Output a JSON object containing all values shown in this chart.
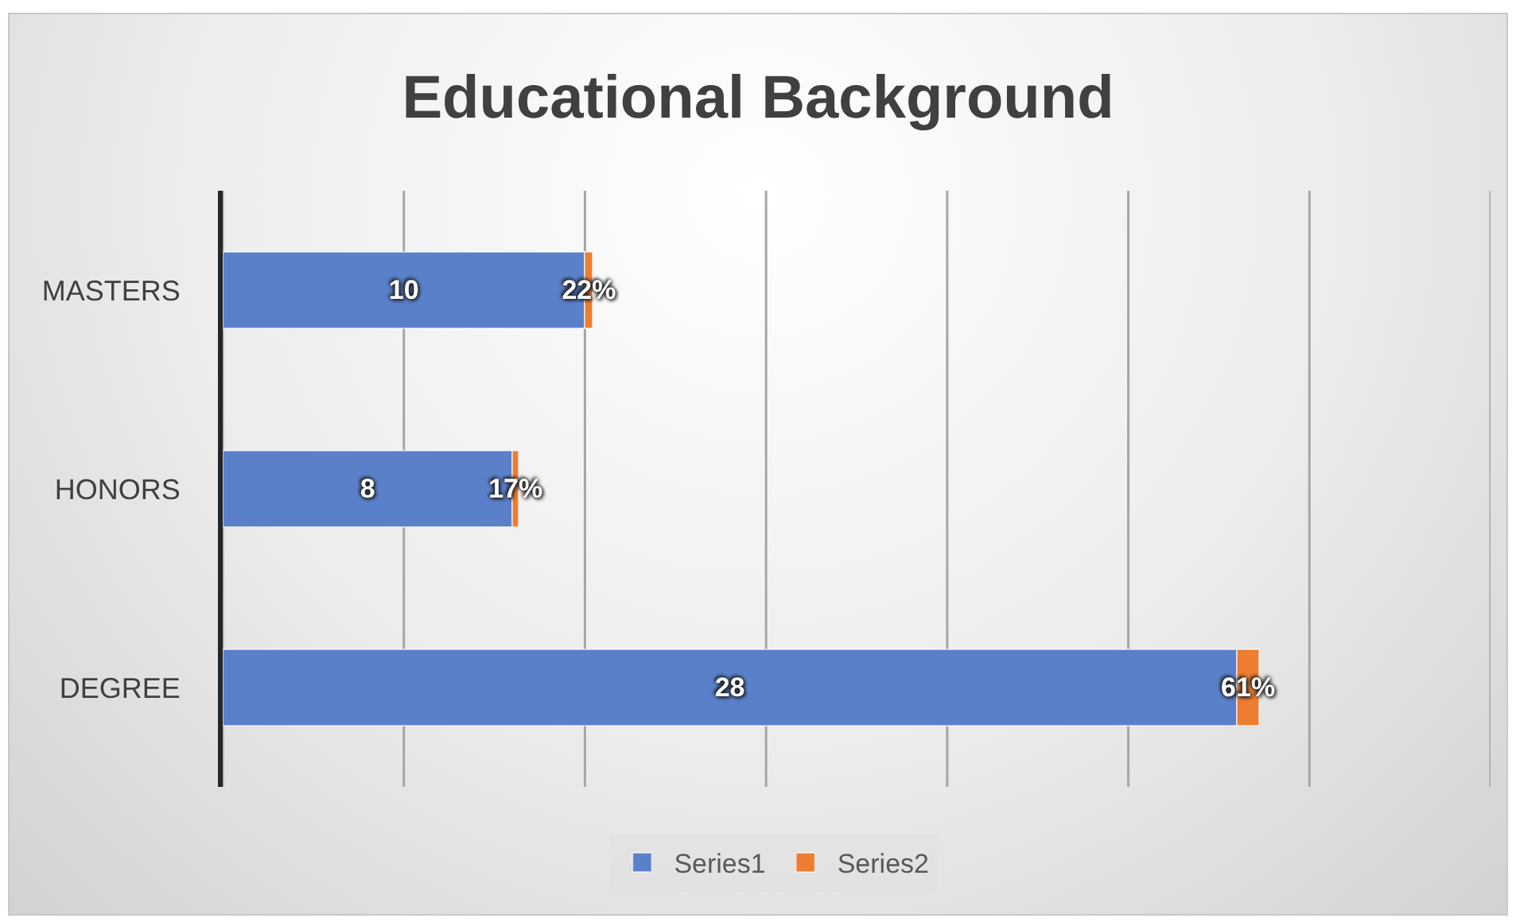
{
  "chart_data": {
    "type": "bar",
    "title": "Educational Background",
    "orientation": "horizontal",
    "stacked": true,
    "categories": [
      "MASTERS",
      "HONORS",
      "DEGREE"
    ],
    "series": [
      {
        "name": "Series1",
        "color": "#5a80ca",
        "values": [
          10,
          8,
          28
        ],
        "value_labels": [
          "10",
          "8",
          "28"
        ]
      },
      {
        "name": "Series2",
        "color": "#ed7d31",
        "values": [
          0.22,
          0.17,
          0.61
        ],
        "value_labels": [
          "22%",
          "17%",
          "61%"
        ]
      }
    ],
    "xlim": [
      0,
      35
    ],
    "xticks": [
      {
        "value": 0,
        "label": null
      },
      {
        "value": 5,
        "label": null
      },
      {
        "value": 10,
        "label": null
      },
      {
        "value": 15,
        "label": null
      },
      {
        "value": 20,
        "label": null
      },
      {
        "value": 25,
        "label": null
      },
      {
        "value": 30,
        "label": null
      },
      {
        "value": 35,
        "label": null
      }
    ],
    "grid": "x",
    "legend": "bottom",
    "tick_labels": "y"
  }
}
